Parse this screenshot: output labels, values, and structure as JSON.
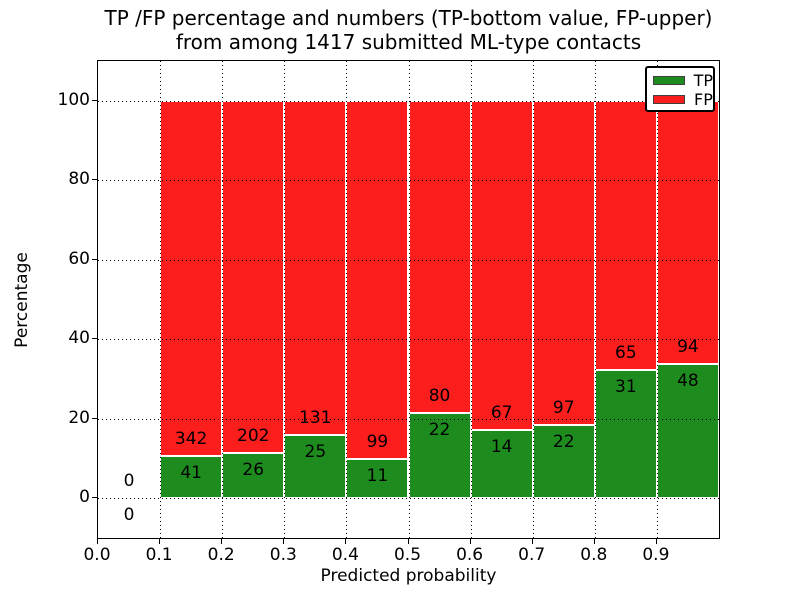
{
  "figure": {
    "title_line1": "TP /FP percentage and numbers (TP-bottom value, FP-upper)",
    "title_line2": "from among 1417 submitted ML-type contacts",
    "xlabel": "Predicted probability",
    "ylabel": "Percentage"
  },
  "legend": {
    "position": "upper right",
    "items": [
      {
        "label": "TP",
        "color": "#1e8b1e"
      },
      {
        "label": "FP",
        "color": "#fc1d1d"
      }
    ]
  },
  "chart_data": {
    "type": "bar",
    "stacked": true,
    "title": "TP /FP percentage and numbers (TP-bottom value, FP-upper) from among 1417 submitted ML-type contacts",
    "xlabel": "Predicted probability",
    "ylabel": "Percentage",
    "total_contacts": 1417,
    "xlim": [
      0.0,
      1.0
    ],
    "ylim": [
      -10,
      110
    ],
    "xticks": [
      "0.0",
      "0.1",
      "0.2",
      "0.3",
      "0.4",
      "0.5",
      "0.6",
      "0.7",
      "0.8",
      "0.9"
    ],
    "yticks": [
      0,
      20,
      40,
      60,
      80,
      100
    ],
    "grid": "dotted",
    "bin_width": 0.1,
    "colors": {
      "tp": "#1e8b1e",
      "fp": "#fc1d1d"
    },
    "bars": [
      {
        "bin_start": 0.0,
        "tp_count": 0,
        "fp_count": 0,
        "tp_pct": 0
      },
      {
        "bin_start": 0.1,
        "tp_count": 41,
        "fp_count": 342,
        "tp_pct": 10.7
      },
      {
        "bin_start": 0.2,
        "tp_count": 26,
        "fp_count": 202,
        "tp_pct": 11.4
      },
      {
        "bin_start": 0.3,
        "tp_count": 25,
        "fp_count": 131,
        "tp_pct": 16.03
      },
      {
        "bin_start": 0.4,
        "tp_count": 11,
        "fp_count": 99,
        "tp_pct": 10.0
      },
      {
        "bin_start": 0.5,
        "tp_count": 22,
        "fp_count": 80,
        "tp_pct": 21.57
      },
      {
        "bin_start": 0.6,
        "tp_count": 14,
        "fp_count": 67,
        "tp_pct": 17.28
      },
      {
        "bin_start": 0.7,
        "tp_count": 22,
        "fp_count": 97,
        "tp_pct": 18.49
      },
      {
        "bin_start": 0.8,
        "tp_count": 31,
        "fp_count": 65,
        "tp_pct": 32.29
      },
      {
        "bin_start": 0.9,
        "tp_count": 48,
        "fp_count": 94,
        "tp_pct": 33.8
      }
    ],
    "series": [
      {
        "name": "TP",
        "color": "#1e8b1e",
        "values": [
          0,
          41,
          26,
          25,
          11,
          22,
          14,
          22,
          31,
          48
        ]
      },
      {
        "name": "FP",
        "color": "#fc1d1d",
        "values": [
          0,
          342,
          202,
          131,
          99,
          80,
          67,
          97,
          65,
          94
        ]
      }
    ]
  }
}
